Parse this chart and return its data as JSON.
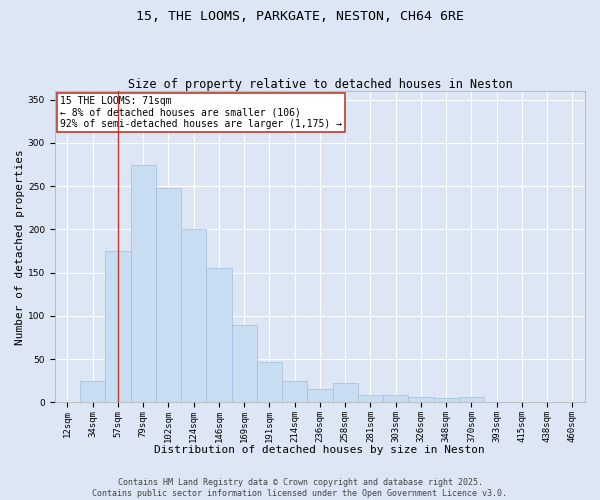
{
  "title_line1": "15, THE LOOMS, PARKGATE, NESTON, CH64 6RE",
  "title_line2": "Size of property relative to detached houses in Neston",
  "xlabel": "Distribution of detached houses by size in Neston",
  "ylabel": "Number of detached properties",
  "categories": [
    "12sqm",
    "34sqm",
    "57sqm",
    "79sqm",
    "102sqm",
    "124sqm",
    "146sqm",
    "169sqm",
    "191sqm",
    "214sqm",
    "236sqm",
    "258sqm",
    "281sqm",
    "303sqm",
    "326sqm",
    "348sqm",
    "370sqm",
    "393sqm",
    "415sqm",
    "438sqm",
    "460sqm"
  ],
  "values": [
    0,
    25,
    175,
    275,
    248,
    200,
    155,
    90,
    47,
    25,
    15,
    22,
    8,
    8,
    6,
    5,
    6,
    0,
    0,
    0,
    0
  ],
  "bar_color": "#c9ddf2",
  "bar_edge_color": "#a0bedd",
  "vline_x": 2.0,
  "vline_color": "#c0392b",
  "annotation_box_text": "15 THE LOOMS: 71sqm\n← 8% of detached houses are smaller (106)\n92% of semi-detached houses are larger (1,175) →",
  "annotation_box_color": "white",
  "annotation_box_edge_color": "#c0392b",
  "ylim": [
    0,
    360
  ],
  "yticks": [
    0,
    50,
    100,
    150,
    200,
    250,
    300,
    350
  ],
  "background_color": "#dce6f5",
  "plot_background_color": "#dce6f5",
  "footer_line1": "Contains HM Land Registry data © Crown copyright and database right 2025.",
  "footer_line2": "Contains public sector information licensed under the Open Government Licence v3.0.",
  "title_fontsize": 9.5,
  "subtitle_fontsize": 8.5,
  "axis_label_fontsize": 8,
  "tick_fontsize": 6.5,
  "annotation_fontsize": 7,
  "footer_fontsize": 6
}
